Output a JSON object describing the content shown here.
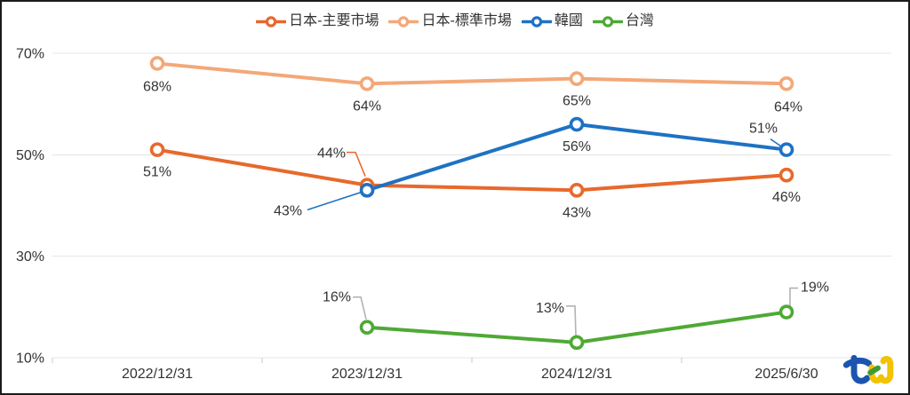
{
  "chart_data": {
    "type": "line",
    "title": "",
    "categories": [
      "2022/12/31",
      "2023/12/31",
      "2024/12/31",
      "2025/6/30"
    ],
    "ylim": [
      10,
      70
    ],
    "yticks": [
      70,
      50,
      30,
      10
    ],
    "ytick_labels": [
      "70%",
      "50%",
      "30%",
      "10%"
    ],
    "grid": "horizontal",
    "legend_position": "top",
    "marker": "open-circle",
    "grid_color": "#E4E4E4",
    "tick_color": "#C9C9C9",
    "label_color": "#333333",
    "leader_gray": "#B3B3B3",
    "series": [
      {
        "name": "日本-主要市場",
        "color": "#E7692C",
        "values": [
          51,
          44,
          43,
          46
        ],
        "labels": [
          {
            "text": "51%",
            "dx": 0,
            "dy": 30
          },
          {
            "text": "44%",
            "dx": -40,
            "dy": -31,
            "leader": {
              "color": null,
              "points": [
                [
                  -23,
                  -37
                ],
                [
                  -13,
                  -37
                ],
                [
                  -2,
                  -10
                ]
              ]
            }
          },
          {
            "text": "43%",
            "dx": 0,
            "dy": 30
          },
          {
            "text": "46%",
            "dx": 0,
            "dy": 30
          }
        ]
      },
      {
        "name": "日本-標準市場",
        "color": "#F3A879",
        "values": [
          68,
          64,
          65,
          64
        ],
        "labels": [
          {
            "text": "68%",
            "dx": 0,
            "dy": 31
          },
          {
            "text": "64%",
            "dx": 0,
            "dy": 30
          },
          {
            "text": "65%",
            "dx": 0,
            "dy": 30
          },
          {
            "text": "64%",
            "dx": 2,
            "dy": 31
          }
        ]
      },
      {
        "name": "韓國",
        "color": "#1E72C3",
        "values": [
          null,
          43,
          56,
          51
        ],
        "labels": [
          null,
          {
            "text": "43%",
            "dx": -89,
            "dy": 28,
            "leader": {
              "color": null,
              "points": [
                [
                  -67,
                  22
                ],
                [
                  -6,
                  2
                ]
              ]
            }
          },
          {
            "text": "56%",
            "dx": 0,
            "dy": 30
          },
          {
            "text": "51%",
            "dx": -26,
            "dy": -19,
            "leader": {
              "color": null,
              "points": [
                [
                  -18,
                  -12
                ],
                [
                  -5,
                  -3
                ]
              ]
            }
          }
        ]
      },
      {
        "name": "台灣",
        "color": "#4FA935",
        "values": [
          null,
          16,
          13,
          19
        ],
        "labels": [
          null,
          {
            "text": "16%",
            "dx": -34,
            "dy": -29,
            "leader": {
              "color": "#B3B3B3",
              "points": [
                [
                  -16,
                  -34
                ],
                [
                  -7,
                  -34
                ],
                [
                  -1,
                  -9
                ]
              ]
            }
          },
          {
            "text": "13%",
            "dx": -30,
            "dy": -34,
            "leader": {
              "color": "#B3B3B3",
              "points": [
                [
                  -12,
                  -41
                ],
                [
                  -2,
                  -41
                ],
                [
                  -1,
                  -8
                ]
              ]
            }
          },
          {
            "text": "19%",
            "dx": 32,
            "dy": -23,
            "leader": {
              "color": "#B3B3B3",
              "points": [
                [
                  13,
                  -27
                ],
                [
                  4,
                  -27
                ],
                [
                  4,
                  -4
                ]
              ]
            }
          }
        ]
      }
    ]
  },
  "logo": {
    "name": "tej",
    "blue": "#1C55B0",
    "green": "#3D9B35",
    "yellow": "#F2C300"
  }
}
